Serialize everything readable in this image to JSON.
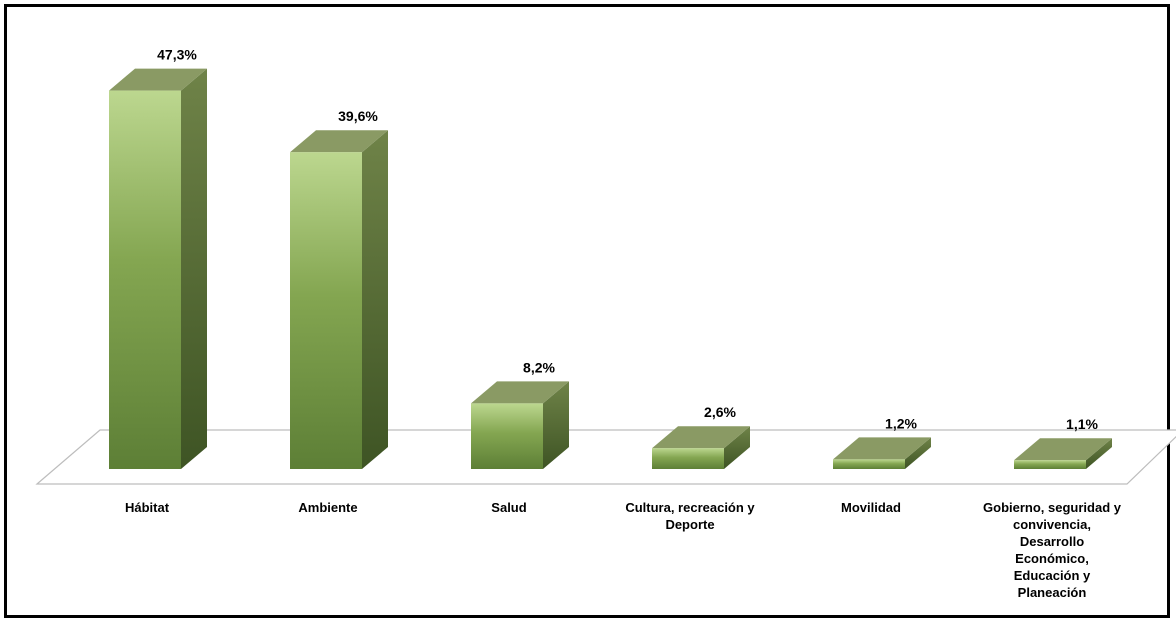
{
  "chart_data": {
    "type": "bar",
    "categories": [
      "Hábitat",
      "Ambiente",
      "Salud",
      "Cultura, recreación y Deporte",
      "Movilidad",
      "Gobierno, seguridad y convivencia, Desarrollo Económico, Educación y Planeación"
    ],
    "category_lines": [
      [
        "Hábitat"
      ],
      [
        "Ambiente"
      ],
      [
        "Salud"
      ],
      [
        "Cultura, recreación y",
        "Deporte"
      ],
      [
        "Movilidad"
      ],
      [
        "Gobierno, seguridad y",
        "convivencia,",
        "Desarrollo",
        "Económico,",
        "Educación y",
        "Planeación"
      ]
    ],
    "values": [
      47.3,
      39.6,
      8.2,
      2.6,
      1.2,
      1.1
    ],
    "data_labels": [
      "47,3%",
      "39,6%",
      "8,2%",
      "2,6%",
      "1,2%",
      "1,1%"
    ],
    "ylim": [
      0,
      50
    ],
    "grid": false,
    "legend": "none",
    "colors": {
      "front_light": "#b8d48a",
      "front_mid": "#7ea04a",
      "front_dark": "#55772f",
      "side": "#4f6a2e",
      "top": "#8a9a64"
    }
  }
}
